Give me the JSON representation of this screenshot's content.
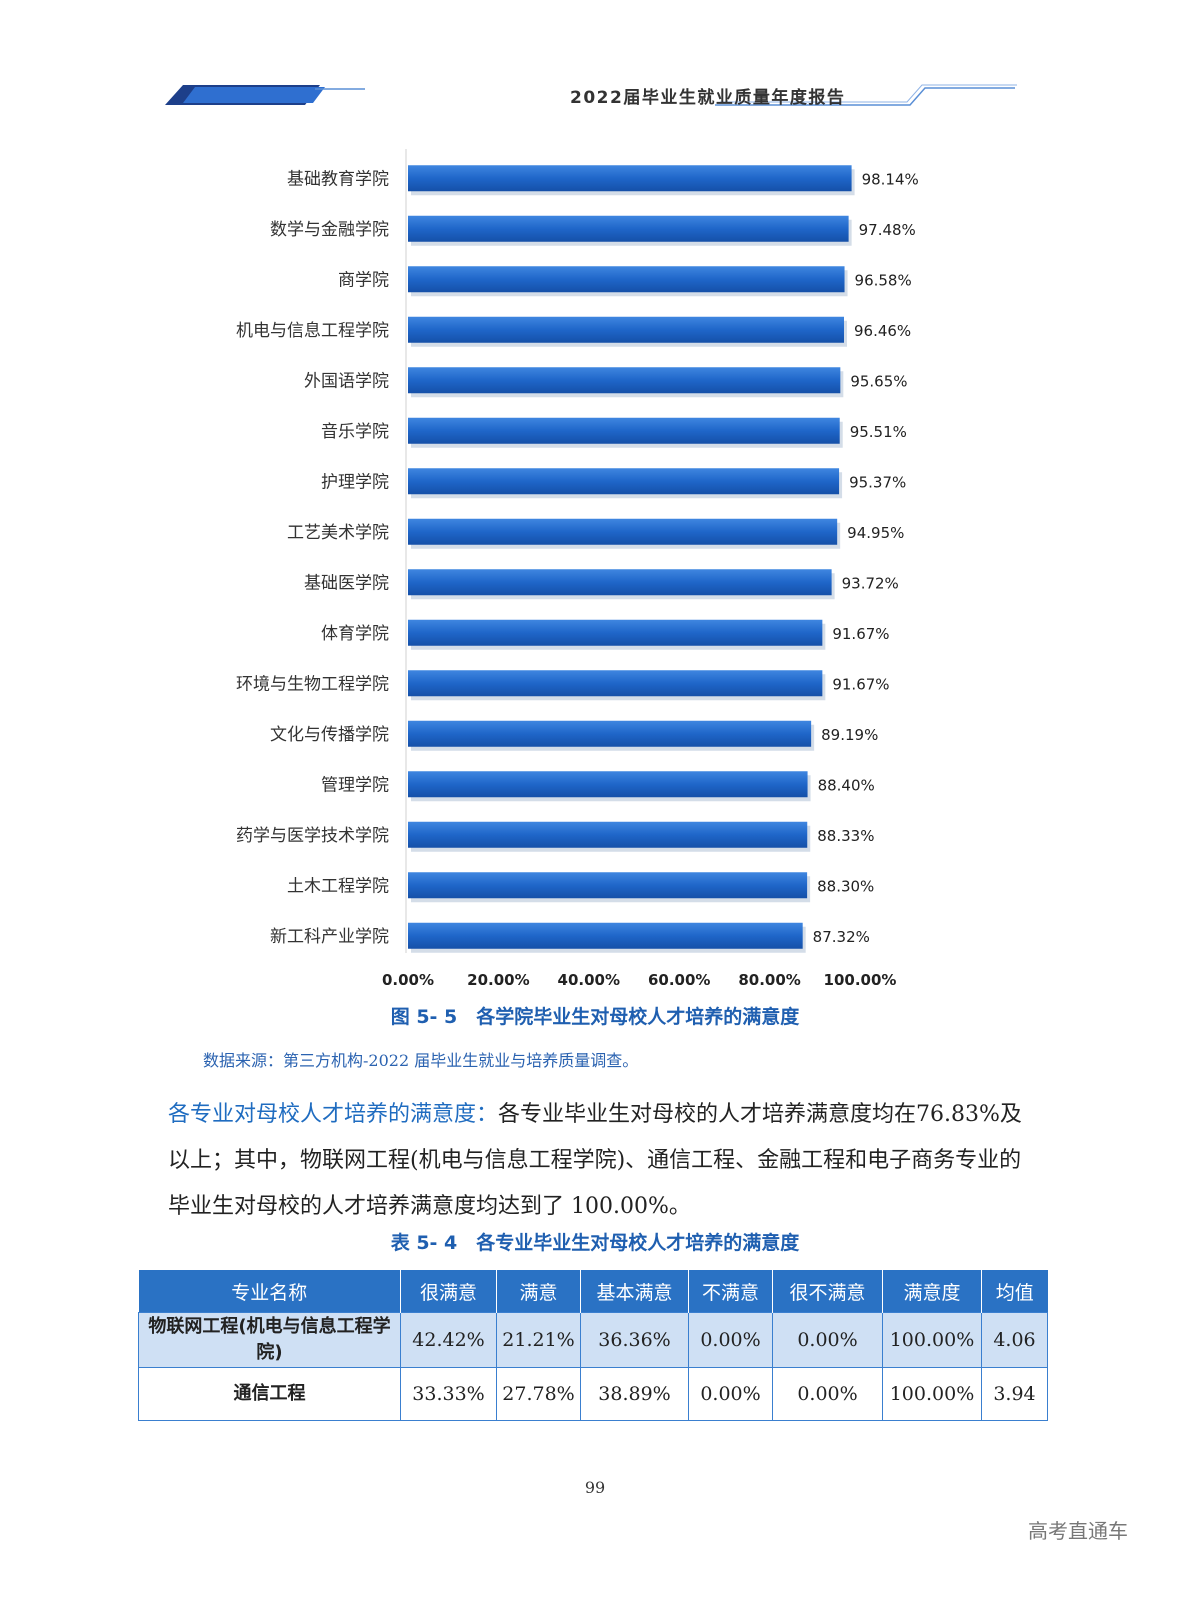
{
  "header": {
    "title": "2022届毕业生就业质量年度报告"
  },
  "chart_data": {
    "type": "bar",
    "orientation": "horizontal",
    "categories": [
      "基础教育学院",
      "数学与金融学院",
      "商学院",
      "机电与信息工程学院",
      "外国语学院",
      "音乐学院",
      "护理学院",
      "工艺美术学院",
      "基础医学院",
      "体育学院",
      "环境与生物工程学院",
      "文化与传播学院",
      "管理学院",
      "药学与医学技术学院",
      "土木工程学院",
      "新工科产业学院"
    ],
    "values": [
      98.14,
      97.48,
      96.58,
      96.46,
      95.65,
      95.51,
      95.37,
      94.95,
      93.72,
      91.67,
      91.67,
      89.19,
      88.4,
      88.33,
      88.3,
      87.32
    ],
    "value_labels": [
      "98.14%",
      "97.48%",
      "96.58%",
      "96.46%",
      "95.65%",
      "95.51%",
      "95.37%",
      "94.95%",
      "93.72%",
      "91.67%",
      "91.67%",
      "89.19%",
      "88.40%",
      "88.33%",
      "88.30%",
      "87.32%"
    ],
    "xticks": [
      "0.00%",
      "20.00%",
      "40.00%",
      "60.00%",
      "80.00%",
      "100.00%"
    ],
    "xlim": [
      0,
      100
    ],
    "bar_color": "#1f66c9",
    "grid": false
  },
  "figure": {
    "caption": "图 5- 5　各学院毕业生对母校人才培养的满意度",
    "source": "数据来源：第三方机构-2022 届毕业生就业与培养质量调查。"
  },
  "paragraph": {
    "highlight": "各专业对母校人才培养的满意度：",
    "text": "各专业毕业生对母校的人才培养满意度均在76.83%及以上；其中，物联网工程(机电与信息工程学院)、通信工程、金融工程和电子商务专业的毕业生对母校的人才培养满意度均达到了 100.00%。"
  },
  "table": {
    "caption": "表 5- 4　各专业毕业生对母校人才培养的满意度",
    "headers": [
      "专业名称",
      "很满意",
      "满意",
      "基本满意",
      "不满意",
      "很不满意",
      "满意度",
      "均值"
    ],
    "rows": [
      [
        "物联网工程(机电与信息工程学院)",
        "42.42%",
        "21.21%",
        "36.36%",
        "0.00%",
        "0.00%",
        "100.00%",
        "4.06"
      ],
      [
        "通信工程",
        "33.33%",
        "27.78%",
        "38.89%",
        "0.00%",
        "0.00%",
        "100.00%",
        "3.94"
      ]
    ]
  },
  "footer": {
    "page_number": "99",
    "watermark": "高考直通车"
  },
  "colors": {
    "accent": "#1f66c9",
    "header_fill": "#2a72c4",
    "row_alt": "#cfe0f4",
    "caption": "#1f5fb0"
  }
}
